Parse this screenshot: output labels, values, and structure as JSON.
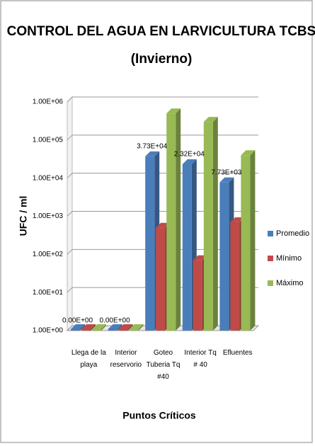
{
  "chart_data": {
    "type": "bar",
    "title": "CONTROL DEL AGUA EN LARVICULTURA TCBS",
    "subtitle": "(Invierno)",
    "y_label": "UFC / ml",
    "x_label": "Puntos Críticos",
    "categories": [
      "Llega de la playa",
      "Interior reservorio",
      "Goteo Tuberia Tq #40",
      "Interior Tq # 40",
      "Efluentes"
    ],
    "series": [
      {
        "name": "Promedio",
        "color": "#4a7ebb",
        "values": [
          0,
          0,
          37300,
          23200,
          7730
        ],
        "value_labels": [
          "0.00E+00",
          "0.00E+00",
          "3.73E+04",
          "2.32E+04",
          "7.73E+03"
        ]
      },
      {
        "name": "Mínimo",
        "color": "#be4b48",
        "values": [
          0,
          0,
          500,
          70,
          700
        ]
      },
      {
        "name": "Máximo",
        "color": "#98b954",
        "values": [
          0,
          0,
          500000,
          300000,
          40000
        ]
      }
    ],
    "log_scale": true,
    "ylim": [
      1,
      1000000
    ],
    "yticks": [
      {
        "value": 1,
        "label": "1.00E+00"
      },
      {
        "value": 10,
        "label": "1.00E+01"
      },
      {
        "value": 100,
        "label": "1.00E+02"
      },
      {
        "value": 1000,
        "label": "1.00E+03"
      },
      {
        "value": 10000,
        "label": "1.00E+04"
      },
      {
        "value": 100000,
        "label": "1.00E+05"
      },
      {
        "value": 1000000,
        "label": "1.00E+06"
      }
    ],
    "grid": true,
    "legend": "right"
  }
}
